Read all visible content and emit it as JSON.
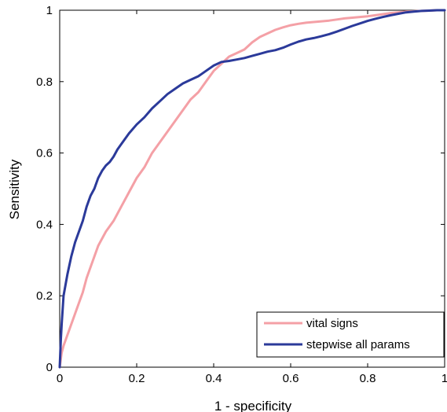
{
  "chart_data": {
    "type": "line",
    "title": "",
    "xlabel": "1 - specificity",
    "ylabel": "Sensitivity",
    "xlim": [
      0,
      1
    ],
    "ylim": [
      0,
      1
    ],
    "grid": false,
    "legend_position": "bottom-right",
    "x_ticks": [
      0,
      0.2,
      0.4,
      0.6,
      0.8,
      1
    ],
    "x_tick_labels": [
      "0",
      "0.2",
      "0.4",
      "0.6",
      "0.8",
      "1"
    ],
    "y_ticks": [
      0,
      0.2,
      0.4,
      0.6,
      0.8,
      1
    ],
    "y_tick_labels": [
      "0",
      "0.2",
      "0.4",
      "0.6",
      "0.8",
      "1"
    ],
    "series": [
      {
        "name": "vital signs",
        "color": "#f4a0a6",
        "x": [
          0,
          0.005,
          0.01,
          0.02,
          0.03,
          0.04,
          0.05,
          0.06,
          0.07,
          0.08,
          0.09,
          0.1,
          0.12,
          0.14,
          0.16,
          0.18,
          0.2,
          0.22,
          0.24,
          0.26,
          0.28,
          0.3,
          0.32,
          0.34,
          0.36,
          0.38,
          0.4,
          0.42,
          0.44,
          0.46,
          0.48,
          0.5,
          0.52,
          0.54,
          0.56,
          0.58,
          0.6,
          0.62,
          0.64,
          0.66,
          0.68,
          0.7,
          0.72,
          0.74,
          0.76,
          0.78,
          0.8,
          0.82,
          0.84,
          0.86,
          0.88,
          0.9,
          0.92,
          0.94,
          0.96,
          0.98,
          1.0
        ],
        "y": [
          0,
          0.04,
          0.06,
          0.09,
          0.12,
          0.15,
          0.18,
          0.21,
          0.25,
          0.28,
          0.31,
          0.34,
          0.38,
          0.41,
          0.45,
          0.49,
          0.53,
          0.56,
          0.6,
          0.63,
          0.66,
          0.69,
          0.72,
          0.75,
          0.77,
          0.8,
          0.83,
          0.85,
          0.87,
          0.88,
          0.89,
          0.91,
          0.925,
          0.935,
          0.945,
          0.952,
          0.958,
          0.962,
          0.965,
          0.967,
          0.969,
          0.971,
          0.974,
          0.977,
          0.979,
          0.981,
          0.983,
          0.986,
          0.989,
          0.992,
          0.994,
          0.996,
          0.997,
          0.998,
          0.999,
          1.0,
          1.0
        ]
      },
      {
        "name": "stepwise all params",
        "color": "#2b3a9a",
        "x": [
          0,
          0.003,
          0.005,
          0.01,
          0.02,
          0.03,
          0.04,
          0.05,
          0.06,
          0.07,
          0.08,
          0.09,
          0.1,
          0.11,
          0.12,
          0.13,
          0.14,
          0.15,
          0.16,
          0.18,
          0.2,
          0.22,
          0.24,
          0.26,
          0.28,
          0.3,
          0.32,
          0.34,
          0.36,
          0.38,
          0.4,
          0.42,
          0.44,
          0.46,
          0.48,
          0.5,
          0.52,
          0.54,
          0.56,
          0.58,
          0.6,
          0.62,
          0.64,
          0.66,
          0.68,
          0.7,
          0.72,
          0.74,
          0.76,
          0.78,
          0.8,
          0.82,
          0.84,
          0.86,
          0.88,
          0.9,
          0.92,
          0.94,
          0.96,
          0.98,
          1.0
        ],
        "y": [
          0,
          0.08,
          0.12,
          0.2,
          0.26,
          0.31,
          0.35,
          0.38,
          0.41,
          0.45,
          0.48,
          0.5,
          0.53,
          0.55,
          0.565,
          0.575,
          0.59,
          0.61,
          0.625,
          0.655,
          0.68,
          0.7,
          0.725,
          0.745,
          0.765,
          0.78,
          0.795,
          0.805,
          0.815,
          0.83,
          0.845,
          0.855,
          0.858,
          0.862,
          0.866,
          0.872,
          0.878,
          0.884,
          0.888,
          0.895,
          0.904,
          0.912,
          0.918,
          0.922,
          0.927,
          0.933,
          0.94,
          0.948,
          0.956,
          0.963,
          0.97,
          0.976,
          0.981,
          0.986,
          0.99,
          0.994,
          0.996,
          0.998,
          0.999,
          1.0,
          1.0
        ]
      }
    ]
  }
}
